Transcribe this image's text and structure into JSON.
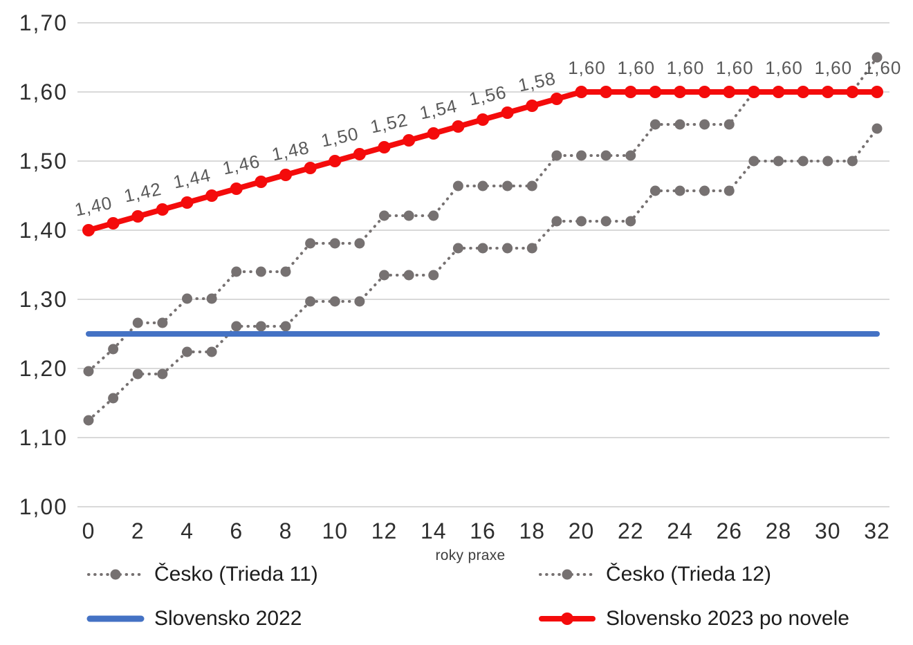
{
  "chart_data": {
    "type": "line",
    "title": "",
    "xlabel": "roky praxe",
    "ylabel": "",
    "xlim": [
      0,
      32
    ],
    "ylim": [
      1.0,
      1.7
    ],
    "grid": "horizontal",
    "legend_position": "bottom",
    "colors": {
      "background": "#ffffff",
      "gridline": "#d9d9d9",
      "axis_text": "#2e2e2e",
      "data_label": "#595959",
      "legend_text": "#1c1c1c",
      "gray_series": "#767171",
      "blue_series": "#4472c4",
      "red_series": "#f40b0b"
    },
    "yticks": [
      {
        "value": 1.0,
        "label": "1,00"
      },
      {
        "value": 1.1,
        "label": "1,10"
      },
      {
        "value": 1.2,
        "label": "1,20"
      },
      {
        "value": 1.3,
        "label": "1,30"
      },
      {
        "value": 1.4,
        "label": "1,40"
      },
      {
        "value": 1.5,
        "label": "1,50"
      },
      {
        "value": 1.6,
        "label": "1,60"
      },
      {
        "value": 1.7,
        "label": "1,70"
      }
    ],
    "xticks": [
      {
        "value": 0,
        "label": "0"
      },
      {
        "value": 2,
        "label": "2"
      },
      {
        "value": 4,
        "label": "4"
      },
      {
        "value": 6,
        "label": "6"
      },
      {
        "value": 8,
        "label": "8"
      },
      {
        "value": 10,
        "label": "10"
      },
      {
        "value": 12,
        "label": "12"
      },
      {
        "value": 14,
        "label": "14"
      },
      {
        "value": 16,
        "label": "16"
      },
      {
        "value": 18,
        "label": "18"
      },
      {
        "value": 20,
        "label": "20"
      },
      {
        "value": 22,
        "label": "22"
      },
      {
        "value": 24,
        "label": "24"
      },
      {
        "value": 26,
        "label": "26"
      },
      {
        "value": 28,
        "label": "28"
      },
      {
        "value": 30,
        "label": "30"
      },
      {
        "value": 32,
        "label": "32"
      }
    ],
    "x": [
      0,
      1,
      2,
      3,
      4,
      5,
      6,
      7,
      8,
      9,
      10,
      11,
      12,
      13,
      14,
      15,
      16,
      17,
      18,
      19,
      20,
      21,
      22,
      23,
      24,
      25,
      26,
      27,
      28,
      29,
      30,
      31,
      32
    ],
    "series": [
      {
        "name": "Česko (Trieda 11)",
        "color": "#767171",
        "line_style": "dotted",
        "markers": true,
        "values": [
          1.125,
          1.157,
          1.192,
          1.192,
          1.224,
          1.224,
          1.261,
          1.261,
          1.261,
          1.297,
          1.297,
          1.297,
          1.335,
          1.335,
          1.335,
          1.374,
          1.374,
          1.374,
          1.374,
          1.413,
          1.413,
          1.413,
          1.413,
          1.457,
          1.457,
          1.457,
          1.457,
          1.5,
          1.5,
          1.5,
          1.5,
          1.5,
          1.547
        ]
      },
      {
        "name": "Česko (Trieda 12)",
        "color": "#767171",
        "line_style": "dotted",
        "markers": true,
        "values": [
          1.196,
          1.228,
          1.266,
          1.266,
          1.301,
          1.301,
          1.34,
          1.34,
          1.34,
          1.381,
          1.381,
          1.381,
          1.421,
          1.421,
          1.421,
          1.464,
          1.464,
          1.464,
          1.464,
          1.508,
          1.508,
          1.508,
          1.508,
          1.553,
          1.553,
          1.553,
          1.553,
          1.6,
          1.6,
          1.6,
          1.6,
          1.6,
          1.65
        ]
      },
      {
        "name": "Slovensko 2022",
        "color": "#4472c4",
        "line_style": "solid",
        "markers": false,
        "constant_value": 1.25
      },
      {
        "name": "Slovensko 2023 po novele",
        "color": "#f40b0b",
        "line_style": "solid",
        "markers": true,
        "values": [
          1.4,
          1.41,
          1.42,
          1.43,
          1.44,
          1.45,
          1.46,
          1.47,
          1.48,
          1.49,
          1.5,
          1.51,
          1.52,
          1.53,
          1.54,
          1.55,
          1.56,
          1.57,
          1.58,
          1.59,
          1.6,
          1.6,
          1.6,
          1.6,
          1.6,
          1.6,
          1.6,
          1.6,
          1.6,
          1.6,
          1.6,
          1.6,
          1.6
        ],
        "point_labels": [
          {
            "x": 0,
            "text": "1,40"
          },
          {
            "x": 2,
            "text": "1,42"
          },
          {
            "x": 4,
            "text": "1,44"
          },
          {
            "x": 6,
            "text": "1,46"
          },
          {
            "x": 8,
            "text": "1,48"
          },
          {
            "x": 10,
            "text": "1,50"
          },
          {
            "x": 12,
            "text": "1,52"
          },
          {
            "x": 14,
            "text": "1,54"
          },
          {
            "x": 16,
            "text": "1,56"
          },
          {
            "x": 18,
            "text": "1,58"
          },
          {
            "x": 20,
            "text": "1,60"
          },
          {
            "x": 22,
            "text": "1,60"
          },
          {
            "x": 24,
            "text": "1,60"
          },
          {
            "x": 26,
            "text": "1,60"
          },
          {
            "x": 28,
            "text": "1,60"
          },
          {
            "x": 30,
            "text": "1,60"
          },
          {
            "x": 32,
            "text": "1,60"
          }
        ]
      }
    ]
  }
}
